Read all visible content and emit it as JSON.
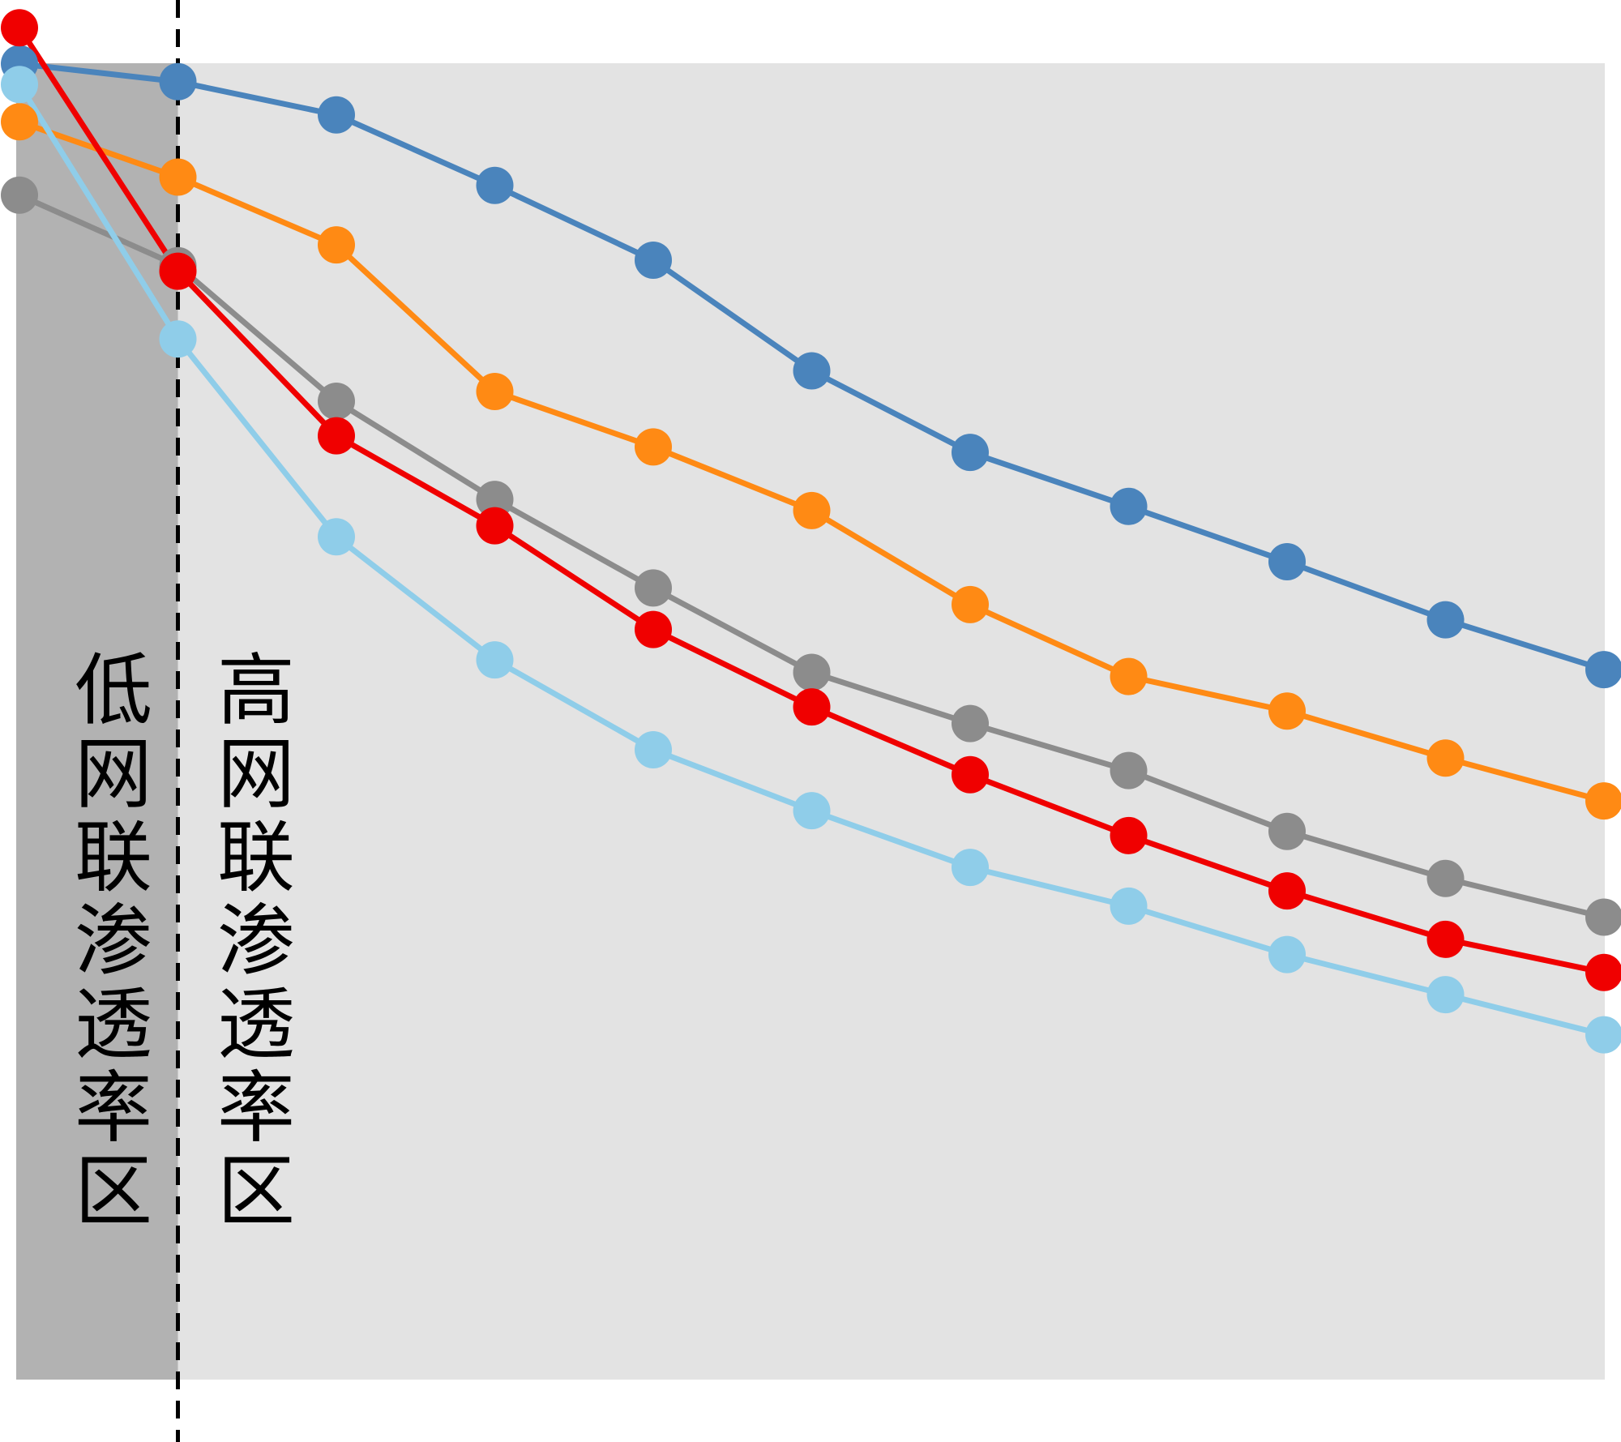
{
  "chart_data": {
    "type": "line",
    "title": "",
    "xlabel": "",
    "ylabel": "",
    "x": [
      0,
      1,
      2,
      3,
      4,
      5,
      6,
      7,
      8,
      9,
      10
    ],
    "ylim": [
      0,
      100
    ],
    "grid": false,
    "legend": "none",
    "zones": [
      {
        "label": "低网联渗透率区",
        "x_range": [
          0,
          1
        ],
        "color": "#b2b2b2"
      },
      {
        "label": "高网联渗透率区",
        "x_range": [
          1,
          10
        ],
        "color": "#e3e3e3"
      }
    ],
    "divider_x": 1,
    "series": [
      {
        "color": "#4a84bc",
        "values": [
          95.1,
          93.8,
          91.4,
          86.3,
          80.9,
          72.9,
          67.0,
          63.1,
          59.1,
          54.9,
          51.3
        ]
      },
      {
        "color": "#ff8a14",
        "values": [
          90.9,
          86.9,
          82.0,
          71.4,
          67.4,
          62.8,
          56.0,
          50.8,
          48.3,
          44.9,
          41.8
        ]
      },
      {
        "color": "#8c8c8c",
        "values": [
          85.6,
          80.5,
          70.7,
          63.6,
          57.2,
          51.1,
          47.4,
          44.0,
          39.6,
          36.2,
          33.4
        ]
      },
      {
        "color": "#f00000",
        "values": [
          97.7,
          80.1,
          68.2,
          61.7,
          54.2,
          48.6,
          43.7,
          39.3,
          35.3,
          31.8,
          29.4
        ]
      },
      {
        "color": "#8fcde9",
        "values": [
          93.6,
          75.2,
          60.9,
          52.0,
          45.5,
          41.1,
          37.0,
          34.2,
          30.7,
          27.8,
          24.9
        ]
      }
    ]
  }
}
